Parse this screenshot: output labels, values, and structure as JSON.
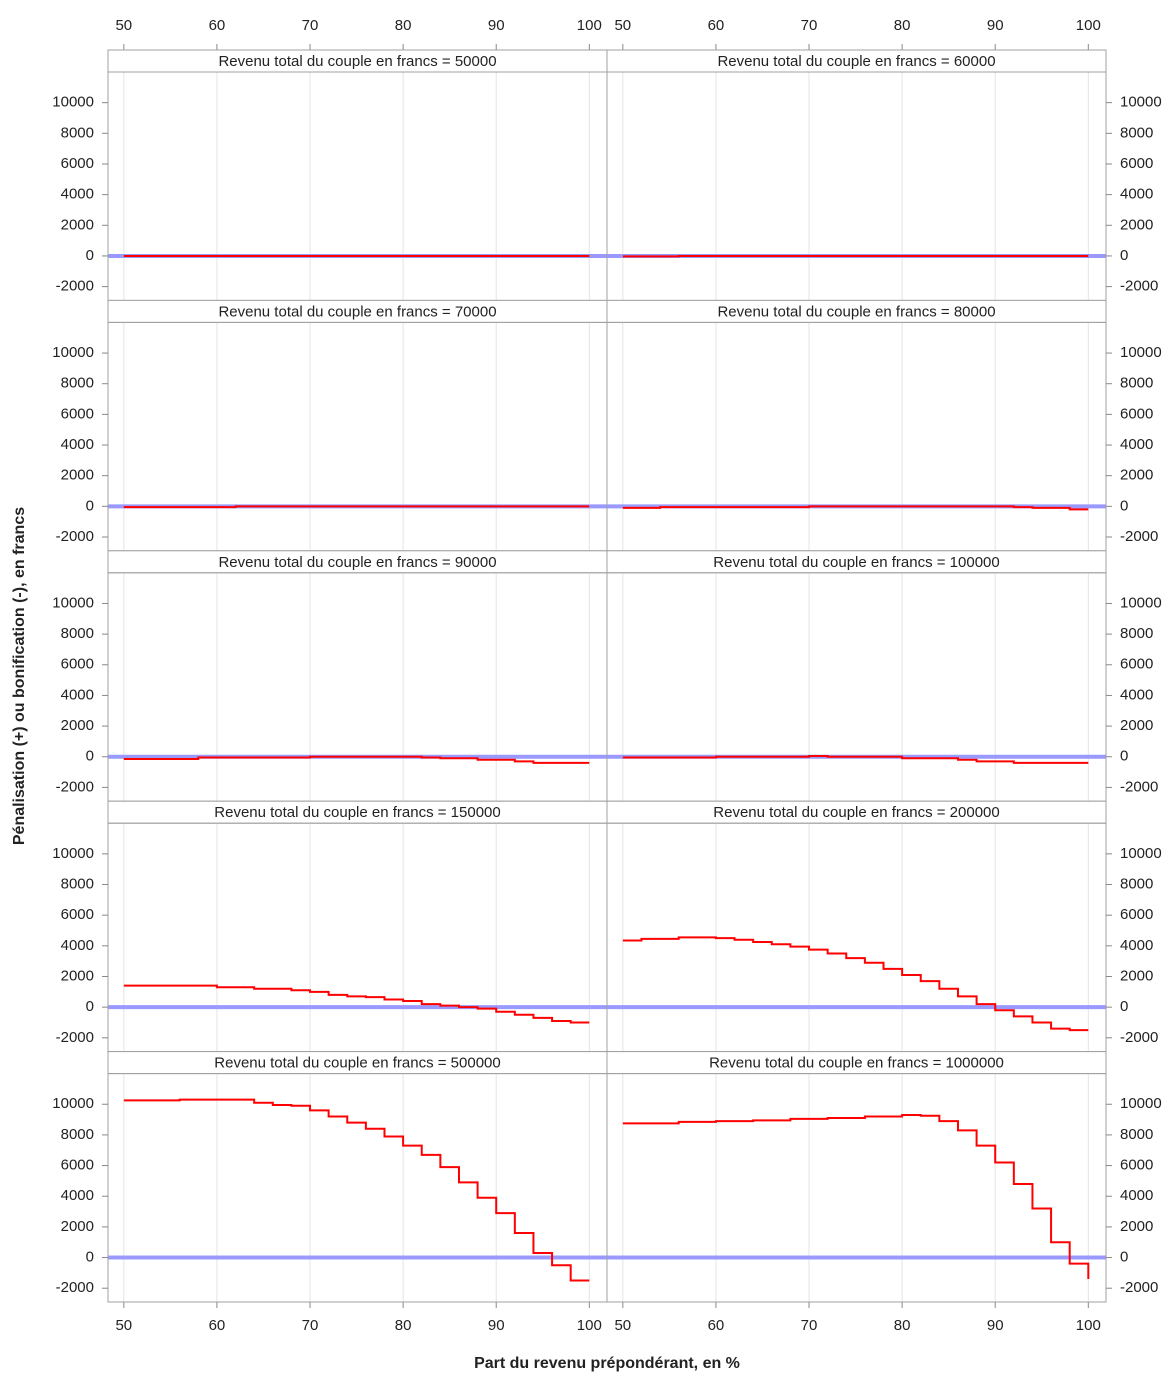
{
  "chart_data": {
    "type": "step",
    "xlabel": "Part du revenu prépondérant, en %",
    "ylabel": "Pénalisation (+) ou bonification (-), en francs",
    "x": [
      50,
      52,
      54,
      56,
      58,
      60,
      62,
      64,
      66,
      68,
      70,
      72,
      74,
      76,
      78,
      80,
      82,
      84,
      86,
      88,
      90,
      92,
      94,
      96,
      98,
      100
    ],
    "xlim": [
      48.3,
      101.9
    ],
    "xticks": [
      50,
      60,
      70,
      80,
      90,
      100
    ],
    "ylim": [
      -2900,
      12000
    ],
    "yticks": [
      -2000,
      0,
      2000,
      4000,
      6000,
      8000,
      10000
    ],
    "grid": "x",
    "color": "#ff0000",
    "reference_line": {
      "value": 0,
      "color": "#9999ff"
    },
    "panels": [
      {
        "title": "Revenu total du couple en francs = 50000",
        "values": [
          0,
          0,
          0,
          0,
          0,
          0,
          0,
          0,
          0,
          0,
          0,
          0,
          0,
          0,
          0,
          0,
          0,
          0,
          0,
          0,
          0,
          0,
          0,
          0,
          0,
          0
        ]
      },
      {
        "title": "Revenu total du couple en francs = 60000",
        "values": [
          -30,
          -30,
          -30,
          0,
          0,
          0,
          0,
          0,
          0,
          0,
          0,
          0,
          0,
          0,
          0,
          0,
          0,
          0,
          0,
          0,
          0,
          0,
          0,
          0,
          0,
          0
        ]
      },
      {
        "title": "Revenu total du couple en francs = 70000",
        "values": [
          -50,
          -50,
          -50,
          -50,
          -50,
          -50,
          0,
          0,
          0,
          0,
          0,
          0,
          0,
          0,
          0,
          0,
          0,
          0,
          0,
          0,
          0,
          0,
          0,
          0,
          0,
          0
        ]
      },
      {
        "title": "Revenu total du couple en francs = 80000",
        "values": [
          -100,
          -100,
          -50,
          -50,
          -50,
          -50,
          -50,
          -50,
          -50,
          -50,
          0,
          0,
          0,
          0,
          0,
          0,
          0,
          0,
          0,
          0,
          0,
          -50,
          -100,
          -100,
          -200,
          -200
        ]
      },
      {
        "title": "Revenu total du couple en francs = 90000",
        "values": [
          -150,
          -150,
          -150,
          -150,
          -50,
          -50,
          -50,
          -50,
          -50,
          -50,
          0,
          0,
          0,
          0,
          0,
          0,
          -50,
          -100,
          -100,
          -200,
          -200,
          -300,
          -400,
          -400,
          -400,
          -400
        ]
      },
      {
        "title": "Revenu total du couple en francs = 100000",
        "values": [
          -50,
          -50,
          -50,
          -50,
          -50,
          0,
          0,
          0,
          0,
          0,
          50,
          0,
          0,
          0,
          0,
          -100,
          -100,
          -100,
          -200,
          -300,
          -300,
          -400,
          -400,
          -400,
          -400,
          -400
        ]
      },
      {
        "title": "Revenu total du couple en francs = 150000",
        "values": [
          1400,
          1400,
          1400,
          1400,
          1400,
          1300,
          1300,
          1200,
          1200,
          1100,
          1000,
          800,
          700,
          650,
          500,
          400,
          200,
          100,
          0,
          -100,
          -300,
          -500,
          -700,
          -900,
          -1000,
          -1000
        ]
      },
      {
        "title": "Revenu total du couple en francs = 200000",
        "values": [
          4350,
          4450,
          4450,
          4550,
          4550,
          4500,
          4400,
          4250,
          4100,
          3950,
          3750,
          3500,
          3200,
          2900,
          2500,
          2100,
          1700,
          1200,
          700,
          200,
          -200,
          -600,
          -1000,
          -1400,
          -1500,
          -1500
        ]
      },
      {
        "title": "Revenu total du couple en francs = 500000",
        "values": [
          10250,
          10250,
          10250,
          10300,
          10300,
          10300,
          10300,
          10100,
          9950,
          9900,
          9600,
          9200,
          8800,
          8400,
          7900,
          7300,
          6700,
          5900,
          4900,
          3900,
          2900,
          1600,
          300,
          -500,
          -1500,
          -1500
        ]
      },
      {
        "title": "Revenu total du couple en francs = 1000000",
        "values": [
          8750,
          8750,
          8750,
          8850,
          8850,
          8900,
          8900,
          8950,
          8950,
          9050,
          9050,
          9100,
          9100,
          9200,
          9200,
          9300,
          9250,
          8900,
          8300,
          7300,
          6200,
          4800,
          3200,
          1000,
          -400,
          -1400
        ]
      }
    ]
  }
}
